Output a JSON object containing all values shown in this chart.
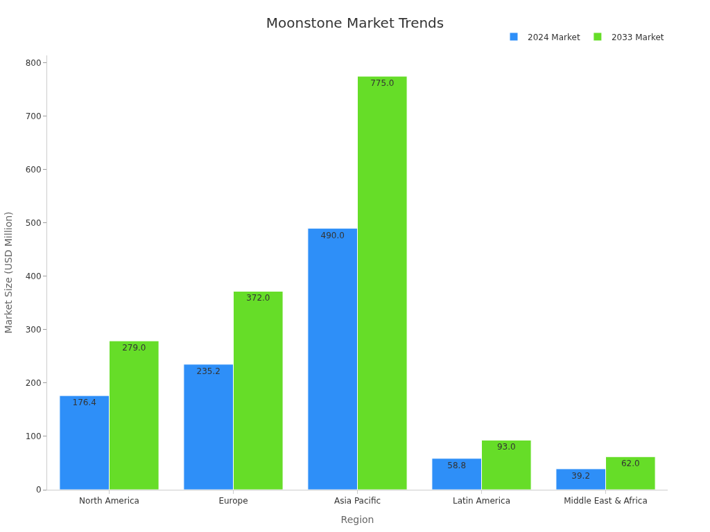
{
  "chart_data": {
    "type": "bar",
    "title": "Moonstone Market Trends",
    "xlabel": "Region",
    "ylabel": "Market Size (USD Million)",
    "categories": [
      "North America",
      "Europe",
      "Asia Pacific",
      "Latin America",
      "Middle East & Africa"
    ],
    "series": [
      {
        "name": "2024 Market",
        "color": "#2e8ff8",
        "values": [
          176.4,
          235.2,
          490.0,
          58.8,
          39.2
        ]
      },
      {
        "name": "2033 Market",
        "color": "#66dd28",
        "values": [
          279.0,
          372.0,
          775.0,
          93.0,
          62.0
        ]
      }
    ],
    "value_labels": [
      [
        "176.4",
        "235.2",
        "490.0",
        "58.8",
        "39.2"
      ],
      [
        "279.0",
        "372.0",
        "775.0",
        "93.0",
        "62.0"
      ]
    ],
    "ylim": [
      0,
      814
    ],
    "yticks": [
      0,
      100,
      200,
      300,
      400,
      500,
      600,
      700,
      800
    ],
    "legend": "top right"
  }
}
